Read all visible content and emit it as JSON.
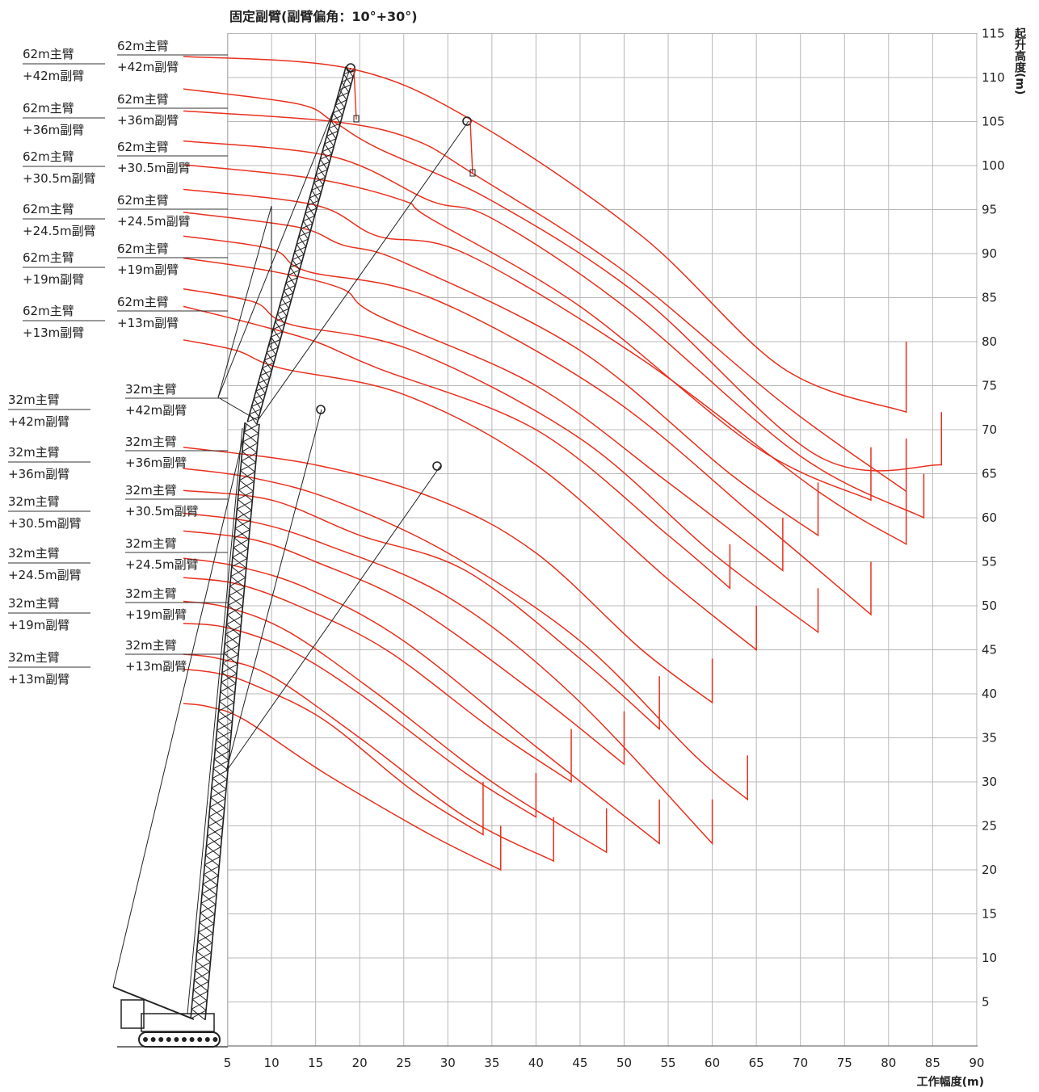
{
  "chart_data": {
    "type": "line",
    "title": "固定副臂(副臂偏角：10°+30°)",
    "xlabel": "工作幅度(m)",
    "ylabel": "起升高度(m)",
    "xlim": [
      0,
      90
    ],
    "ylim": [
      0,
      115
    ],
    "x_ticks": [
      5,
      10,
      15,
      20,
      25,
      30,
      35,
      40,
      45,
      50,
      55,
      60,
      65,
      70,
      75,
      80,
      85,
      90
    ],
    "y_ticks": [
      5,
      10,
      15,
      20,
      25,
      30,
      35,
      40,
      45,
      50,
      55,
      60,
      65,
      70,
      75,
      80,
      85,
      90,
      95,
      100,
      105,
      110,
      115
    ],
    "grid": true,
    "series_color": "#e8301e",
    "group_labels": [
      {
        "id": "g62_42",
        "main": "62m主臂",
        "jib": "+42m副臂"
      },
      {
        "id": "g62_36",
        "main": "62m主臂",
        "jib": "+36m副臂"
      },
      {
        "id": "g62_305",
        "main": "62m主臂",
        "jib": "+30.5m副臂"
      },
      {
        "id": "g62_245",
        "main": "62m主臂",
        "jib": "+24.5m副臂"
      },
      {
        "id": "g62_19",
        "main": "62m主臂",
        "jib": "+19m副臂"
      },
      {
        "id": "g62_13",
        "main": "62m主臂",
        "jib": "+13m副臂"
      },
      {
        "id": "g32_42",
        "main": "32m主臂",
        "jib": "+42m副臂"
      },
      {
        "id": "g32_36",
        "main": "32m主臂",
        "jib": "+36m副臂"
      },
      {
        "id": "g32_305",
        "main": "32m主臂",
        "jib": "+30.5m副臂"
      },
      {
        "id": "g32_245",
        "main": "32m主臂",
        "jib": "+24.5m副臂"
      },
      {
        "id": "g32_19",
        "main": "32m主臂",
        "jib": "+19m副臂"
      },
      {
        "id": "g32_13",
        "main": "32m主臂",
        "jib": "+13m副臂"
      }
    ],
    "series": [
      {
        "group": "g62_42",
        "offset": "10°",
        "points": [
          [
            0,
            112.4
          ],
          [
            19,
            111
          ],
          [
            33,
            105
          ],
          [
            52,
            92
          ],
          [
            68,
            77
          ],
          [
            82,
            72
          ],
          [
            82,
            80
          ]
        ]
      },
      {
        "group": "g62_42",
        "offset": "30°",
        "points": [
          [
            0,
            108.7
          ],
          [
            13,
            107
          ],
          [
            17,
            105
          ],
          [
            22,
            102
          ],
          [
            35,
            96
          ],
          [
            52,
            85
          ],
          [
            72,
            67
          ],
          [
            86,
            66
          ],
          [
            86,
            72
          ]
        ]
      },
      {
        "group": "g62_36",
        "offset": "10°",
        "points": [
          [
            0,
            106.2
          ],
          [
            17,
            105
          ],
          [
            26,
            103
          ],
          [
            33,
            99
          ],
          [
            50,
            88
          ],
          [
            68,
            73
          ],
          [
            82,
            63
          ],
          [
            82,
            69
          ]
        ]
      },
      {
        "group": "g62_36",
        "offset": "30°",
        "points": [
          [
            0,
            102.8
          ],
          [
            17,
            101
          ],
          [
            28,
            96
          ],
          [
            35,
            94
          ],
          [
            50,
            84
          ],
          [
            70,
            67
          ],
          [
            84,
            60
          ],
          [
            84,
            65
          ]
        ]
      },
      {
        "group": "g62_305",
        "offset": "10°",
        "points": [
          [
            0,
            100.1
          ],
          [
            15,
            98.5
          ],
          [
            25,
            96
          ],
          [
            28,
            94
          ],
          [
            45,
            84
          ],
          [
            65,
            68
          ],
          [
            78,
            62
          ],
          [
            78,
            68
          ]
        ]
      },
      {
        "group": "g62_305",
        "offset": "30°",
        "points": [
          [
            0,
            97.3
          ],
          [
            15,
            95.5
          ],
          [
            22,
            92
          ],
          [
            32,
            90
          ],
          [
            52,
            78
          ],
          [
            72,
            63
          ],
          [
            82,
            57
          ],
          [
            82,
            63
          ]
        ]
      },
      {
        "group": "g62_245",
        "offset": "10°",
        "points": [
          [
            0,
            94.7
          ],
          [
            13,
            93
          ],
          [
            18,
            91
          ],
          [
            25,
            89
          ],
          [
            45,
            79
          ],
          [
            62,
            65
          ],
          [
            72,
            58
          ],
          [
            72,
            64
          ]
        ]
      },
      {
        "group": "g62_245",
        "offset": "30°",
        "points": [
          [
            0,
            92.0
          ],
          [
            10,
            90.5
          ],
          [
            14,
            88
          ],
          [
            28,
            85
          ],
          [
            48,
            74
          ],
          [
            65,
            60
          ],
          [
            78,
            49
          ],
          [
            78,
            55
          ]
        ]
      },
      {
        "group": "g62_19",
        "offset": "10°",
        "points": [
          [
            0,
            89.5
          ],
          [
            10,
            88
          ],
          [
            18,
            86
          ],
          [
            22,
            83
          ],
          [
            40,
            75
          ],
          [
            55,
            64
          ],
          [
            68,
            54
          ],
          [
            68,
            60
          ]
        ]
      },
      {
        "group": "g62_19",
        "offset": "30°",
        "points": [
          [
            0,
            86.0
          ],
          [
            8,
            84.5
          ],
          [
            12,
            82
          ],
          [
            26,
            79
          ],
          [
            45,
            69
          ],
          [
            60,
            56
          ],
          [
            72,
            47
          ],
          [
            72,
            52
          ]
        ]
      },
      {
        "group": "g62_13",
        "offset": "10°",
        "points": [
          [
            0,
            84.0
          ],
          [
            8,
            82
          ],
          [
            15,
            80
          ],
          [
            22,
            77
          ],
          [
            40,
            70
          ],
          [
            55,
            58
          ],
          [
            62,
            52
          ],
          [
            62,
            57
          ]
        ]
      },
      {
        "group": "g62_13",
        "offset": "30°",
        "points": [
          [
            0,
            80.2
          ],
          [
            6,
            79
          ],
          [
            11,
            77
          ],
          [
            25,
            74
          ],
          [
            40,
            66
          ],
          [
            55,
            53
          ],
          [
            65,
            45
          ],
          [
            65,
            50
          ]
        ]
      },
      {
        "group": "g32_42",
        "offset": "10°",
        "points": [
          [
            0,
            68.0
          ],
          [
            15,
            66
          ],
          [
            29,
            62
          ],
          [
            40,
            56
          ],
          [
            52,
            45
          ],
          [
            60,
            39
          ],
          [
            60,
            44
          ]
        ]
      },
      {
        "group": "g32_42",
        "offset": "30°",
        "points": [
          [
            0,
            65.6
          ],
          [
            8,
            64.5
          ],
          [
            17,
            62
          ],
          [
            30,
            56
          ],
          [
            45,
            46
          ],
          [
            58,
            33
          ],
          [
            64,
            28
          ],
          [
            64,
            33
          ]
        ]
      },
      {
        "group": "g32_36",
        "offset": "10°",
        "points": [
          [
            0,
            63.1
          ],
          [
            10,
            62
          ],
          [
            20,
            58
          ],
          [
            32,
            54
          ],
          [
            45,
            44
          ],
          [
            54,
            36
          ],
          [
            54,
            42
          ]
        ]
      },
      {
        "group": "g32_36",
        "offset": "30°",
        "points": [
          [
            0,
            60.5
          ],
          [
            8,
            59.5
          ],
          [
            16,
            57
          ],
          [
            30,
            51
          ],
          [
            44,
            40
          ],
          [
            60,
            23
          ],
          [
            60,
            28
          ]
        ]
      },
      {
        "group": "g32_305",
        "offset": "10°",
        "points": [
          [
            0,
            58.5
          ],
          [
            8,
            57.5
          ],
          [
            15,
            55
          ],
          [
            26,
            50
          ],
          [
            40,
            40
          ],
          [
            50,
            32
          ],
          [
            50,
            38
          ]
        ]
      },
      {
        "group": "g32_305",
        "offset": "30°",
        "points": [
          [
            0,
            55.4
          ],
          [
            6,
            54.5
          ],
          [
            14,
            52
          ],
          [
            25,
            46
          ],
          [
            40,
            34
          ],
          [
            54,
            23
          ],
          [
            54,
            28
          ]
        ]
      },
      {
        "group": "g32_245",
        "offset": "10°",
        "points": [
          [
            0,
            53.2
          ],
          [
            6,
            52.5
          ],
          [
            13,
            50
          ],
          [
            23,
            45
          ],
          [
            35,
            36
          ],
          [
            44,
            30
          ],
          [
            44,
            36
          ]
        ]
      },
      {
        "group": "g32_245",
        "offset": "30°",
        "points": [
          [
            0,
            50.5
          ],
          [
            5,
            49.8
          ],
          [
            12,
            47
          ],
          [
            22,
            40
          ],
          [
            35,
            30
          ],
          [
            48,
            22
          ],
          [
            48,
            27
          ]
        ]
      },
      {
        "group": "g32_19",
        "offset": "10°",
        "points": [
          [
            0,
            48.0
          ],
          [
            5,
            47.5
          ],
          [
            12,
            45
          ],
          [
            20,
            40
          ],
          [
            32,
            31
          ],
          [
            40,
            26
          ],
          [
            40,
            31
          ]
        ]
      },
      {
        "group": "g32_19",
        "offset": "30°",
        "points": [
          [
            0,
            44.5
          ],
          [
            4,
            44
          ],
          [
            10,
            42
          ],
          [
            20,
            35
          ],
          [
            32,
            26
          ],
          [
            42,
            21
          ],
          [
            42,
            26
          ]
        ]
      },
      {
        "group": "g32_13",
        "offset": "10°",
        "points": [
          [
            0,
            42.8
          ],
          [
            4,
            42.3
          ],
          [
            8,
            41
          ],
          [
            16,
            37
          ],
          [
            26,
            29
          ],
          [
            34,
            24
          ],
          [
            34,
            30
          ]
        ]
      },
      {
        "group": "g32_13",
        "offset": "30°",
        "points": [
          [
            0,
            38.9
          ],
          [
            3,
            38.5
          ],
          [
            7,
            37
          ],
          [
            16,
            31
          ],
          [
            28,
            24
          ],
          [
            36,
            20
          ],
          [
            36,
            25
          ]
        ]
      }
    ]
  }
}
